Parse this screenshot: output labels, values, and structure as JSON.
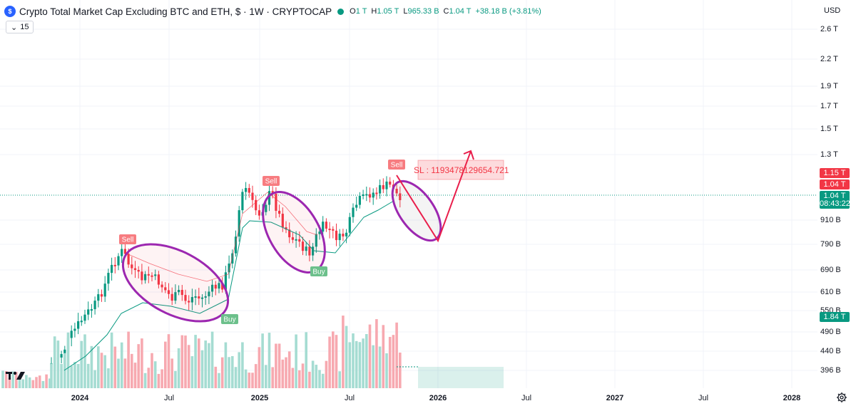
{
  "header": {
    "logo_glyph": "$",
    "title": "Crypto Total Market Cap Excluding BTC and ETH, $ · 1W · CRYPTOCAP",
    "ohlc": [
      {
        "k": "O",
        "v": "1 T"
      },
      {
        "k": "H",
        "v": "1.05 T"
      },
      {
        "k": "L",
        "v": "965.33 B"
      },
      {
        "k": "C",
        "v": "1.04 T"
      }
    ],
    "change": "+38.18 B (+3.81%)"
  },
  "interval_pill": {
    "chevron": "⌄",
    "value": "15"
  },
  "price_axis": {
    "currency": "USD",
    "ticks": [
      "2.6 T",
      "2.2 T",
      "1.9 T",
      "1.7 T",
      "1.5 T",
      "1.3 T",
      "910 B",
      "790 B",
      "690 B",
      "610 B",
      "550 B",
      "490 B",
      "440 B",
      "396 B"
    ],
    "tags": [
      {
        "text": "1.15 T",
        "color": "#f23645"
      },
      {
        "text": "1.04 T",
        "color": "#f23645"
      },
      {
        "text": "1.04 T",
        "color": "#089981"
      },
      {
        "text": "08:43:22",
        "color": "#089981"
      },
      {
        "text": "1.84 T",
        "color": "#089981"
      }
    ]
  },
  "time_axis": [
    "2024",
    "Jul",
    "2025",
    "Jul",
    "2026",
    "Jul",
    "2027",
    "Jul",
    "2028"
  ],
  "signals": {
    "sell": "Sell",
    "buy": "Buy"
  },
  "stop_loss_label": "SL : 1193478129654.721",
  "colors": {
    "up": "#089981",
    "down": "#f23645",
    "ellipse": "#9c27b0",
    "arrow": "#e91e4b"
  },
  "icons": {
    "gear": "gear-icon",
    "logo": "tradingview-logo"
  }
}
